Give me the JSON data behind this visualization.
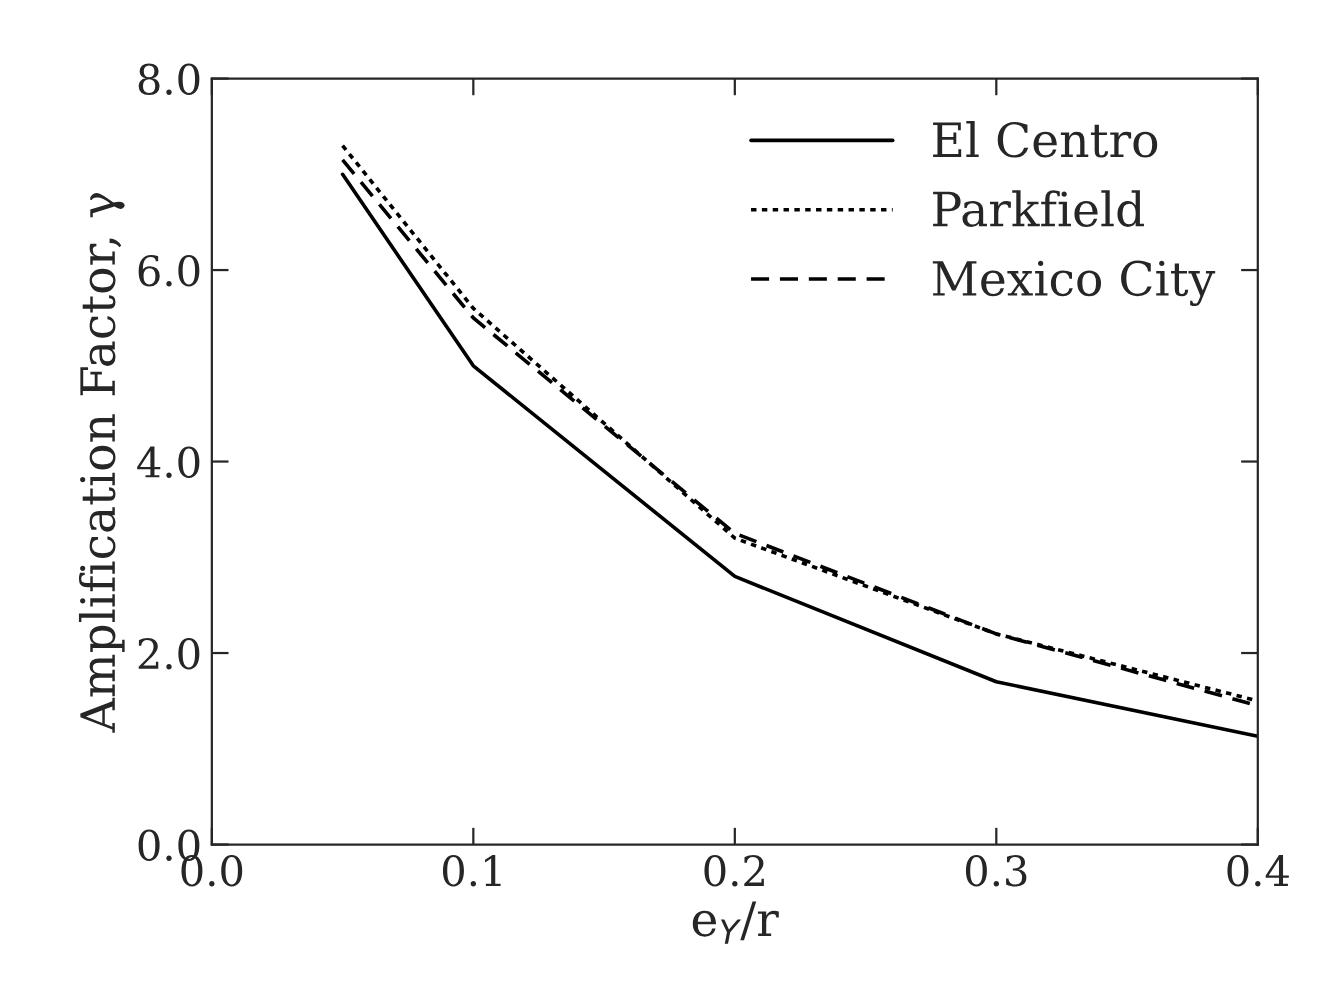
{
  "chart_data": {
    "type": "line",
    "xlabel": "e$_{Y}$/r",
    "ylabel": "Amplification Factor, γ",
    "x": [
      0.05,
      0.1,
      0.2,
      0.3,
      0.4
    ],
    "series": [
      {
        "name": "El Centro",
        "color": "#000000",
        "line_style": "solid",
        "values": [
          7.0,
          5.0,
          2.8,
          1.7,
          1.13
        ]
      },
      {
        "name": "Parkfield",
        "color": "#000000",
        "line_style": "dotted",
        "values": [
          7.3,
          5.6,
          3.2,
          2.2,
          1.5
        ]
      },
      {
        "name": "Mexico City",
        "color": "#000000",
        "line_style": "dashed",
        "values": [
          7.15,
          5.5,
          3.25,
          2.2,
          1.45
        ]
      }
    ],
    "xlim": [
      0.0,
      0.4
    ],
    "ylim": [
      0.0,
      8.0
    ],
    "xticks": [
      {
        "value": 0.0,
        "label": "0.0"
      },
      {
        "value": 0.1,
        "label": "0.1"
      },
      {
        "value": 0.2,
        "label": "0.2"
      },
      {
        "value": 0.3,
        "label": "0.3"
      },
      {
        "value": 0.4,
        "label": "0.4"
      }
    ],
    "yticks": [
      {
        "value": 0.0,
        "label": "0.0"
      },
      {
        "value": 2.0,
        "label": "2.0"
      },
      {
        "value": 4.0,
        "label": "4.0"
      },
      {
        "value": 6.0,
        "label": "6.0"
      },
      {
        "value": 8.0,
        "label": "8.0"
      }
    ],
    "grid": false,
    "legend": "top right",
    "marker": "none"
  }
}
